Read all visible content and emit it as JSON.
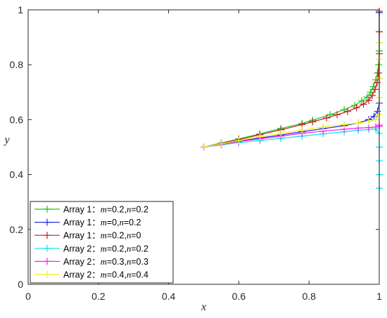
{
  "chart_data": {
    "type": "line",
    "xlabel": "x",
    "ylabel": "y",
    "xlim": [
      0,
      1
    ],
    "ylim": [
      0,
      1
    ],
    "xticks": [
      "0",
      "0.2",
      "0.4",
      "0.6",
      "0.8",
      "1"
    ],
    "yticks": [
      "0",
      "0.2",
      "0.4",
      "0.6",
      "0.8",
      "1"
    ],
    "grid": false,
    "legend_position": "bottom-left",
    "series": [
      {
        "name": "Array 1：m=0.2,n=0.2",
        "name_parts": [
          [
            "Array 1：",
            false
          ],
          [
            "m",
            true
          ],
          [
            "=0.2,",
            false
          ],
          [
            "n",
            true
          ],
          [
            "=0.2",
            false
          ]
        ],
        "color": "#22c322",
        "x": [
          0.5,
          0.55,
          0.6,
          0.66,
          0.72,
          0.78,
          0.81,
          0.86,
          0.9,
          0.93,
          0.95,
          0.965,
          0.975,
          0.983,
          0.99,
          0.995,
          0.998,
          1.0,
          1.0,
          1.0
        ],
        "y": [
          0.5,
          0.515,
          0.53,
          0.548,
          0.568,
          0.586,
          0.598,
          0.618,
          0.636,
          0.652,
          0.668,
          0.682,
          0.7,
          0.72,
          0.745,
          0.77,
          0.8,
          0.85,
          0.92,
          0.99
        ]
      },
      {
        "name": "Array 1：m=0,n=0.2",
        "name_parts": [
          [
            "Array 1：",
            false
          ],
          [
            "m",
            true
          ],
          [
            "=0,",
            false
          ],
          [
            "n",
            true
          ],
          [
            "=0.2",
            false
          ]
        ],
        "color": "#2b2bdc",
        "x": [
          0.5,
          0.55,
          0.6,
          0.66,
          0.72,
          0.78,
          0.84,
          0.9,
          0.94,
          0.97,
          0.985,
          0.995,
          1.0,
          1.0,
          1.0,
          1.0
        ],
        "y": [
          0.5,
          0.512,
          0.522,
          0.533,
          0.544,
          0.556,
          0.567,
          0.578,
          0.588,
          0.6,
          0.612,
          0.63,
          0.66,
          0.75,
          0.88,
          0.99
        ]
      },
      {
        "name": "Array 1：m=0.2,n=0",
        "name_parts": [
          [
            "Array 1：",
            false
          ],
          [
            "m",
            true
          ],
          [
            "=0.2,",
            false
          ],
          [
            "n",
            true
          ],
          [
            "=0",
            false
          ]
        ],
        "color": "#c81e1e",
        "x": [
          0.5,
          0.55,
          0.6,
          0.66,
          0.72,
          0.78,
          0.81,
          0.85,
          0.88,
          0.91,
          0.935,
          0.955,
          0.97,
          0.98,
          0.988,
          0.994,
          0.998,
          1.0,
          1.0,
          1.0
        ],
        "y": [
          0.5,
          0.513,
          0.527,
          0.545,
          0.563,
          0.582,
          0.592,
          0.606,
          0.618,
          0.63,
          0.643,
          0.656,
          0.67,
          0.688,
          0.71,
          0.735,
          0.77,
          0.84,
          0.92,
          0.995
        ]
      },
      {
        "name": "Array 2：m=0.2,n=0.2",
        "name_parts": [
          [
            "Array 2：",
            false
          ],
          [
            "m",
            true
          ],
          [
            "=0.2,",
            false
          ],
          [
            "n",
            true
          ],
          [
            "=0.2",
            false
          ]
        ],
        "color": "#00e5ee",
        "x": [
          0.5,
          0.55,
          0.6,
          0.66,
          0.72,
          0.78,
          0.84,
          0.9,
          0.94,
          0.97,
          0.99,
          1.0,
          1.0,
          1.0,
          1.0,
          1.0
        ],
        "y": [
          0.5,
          0.508,
          0.516,
          0.524,
          0.532,
          0.54,
          0.548,
          0.556,
          0.561,
          0.564,
          0.566,
          0.55,
          0.5,
          0.45,
          0.4,
          0.35
        ]
      },
      {
        "name": "Array 2：m=0.3,n=0.3",
        "name_parts": [
          [
            "Array 2：",
            false
          ],
          [
            "m",
            true
          ],
          [
            "=0.3,",
            false
          ],
          [
            "n",
            true
          ],
          [
            "=0.3",
            false
          ]
        ],
        "color": "#ff1aff",
        "x": [
          0.5,
          0.55,
          0.6,
          0.66,
          0.72,
          0.78,
          0.84,
          0.9,
          0.94,
          0.97,
          0.99,
          1.0,
          1.0
        ],
        "y": [
          0.5,
          0.51,
          0.52,
          0.53,
          0.54,
          0.55,
          0.558,
          0.565,
          0.569,
          0.571,
          0.573,
          0.575,
          0.58
        ]
      },
      {
        "name": "Array 2：m=0.4,n=0.4",
        "name_parts": [
          [
            "Array 2：",
            false
          ],
          [
            "m",
            true
          ],
          [
            "=0.4,",
            false
          ],
          [
            "n",
            true
          ],
          [
            "=0.4",
            false
          ]
        ],
        "color": "#f2ee1c",
        "x": [
          0.5,
          0.55,
          0.6,
          0.66,
          0.72,
          0.78,
          0.84,
          0.9,
          0.94,
          0.97,
          0.99,
          1.0,
          1.0,
          1.0,
          1.0,
          1.0
        ],
        "y": [
          0.5,
          0.512,
          0.524,
          0.537,
          0.55,
          0.562,
          0.573,
          0.582,
          0.588,
          0.593,
          0.6,
          0.62,
          0.68,
          0.75,
          0.82,
          0.88
        ]
      }
    ]
  }
}
